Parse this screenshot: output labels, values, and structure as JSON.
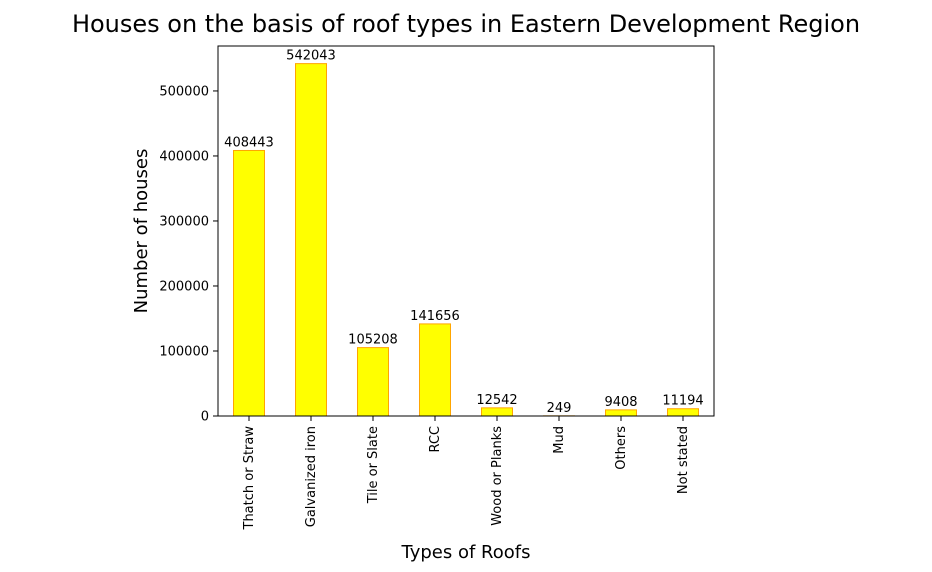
{
  "chart_data": {
    "type": "bar",
    "title": "Houses on the basis of roof types in Eastern Development Region",
    "xlabel": "Types of Roofs",
    "ylabel": "Number of houses",
    "categories": [
      "Thatch or Straw",
      "Galvanized iron",
      "Tile or Slate",
      "RCC",
      "Wood or Planks",
      "Mud",
      "Others",
      "Not stated"
    ],
    "values": [
      408443,
      542043,
      105208,
      141656,
      12542,
      249,
      9408,
      11194
    ],
    "data_labels": [
      "408443",
      "542043",
      "105208",
      "141656",
      "12542",
      "249",
      "9408",
      "11194"
    ],
    "yticks": [
      0,
      100000,
      200000,
      300000,
      400000,
      500000
    ],
    "ytick_labels": [
      "0",
      "100000",
      "200000",
      "300000",
      "400000",
      "500000"
    ],
    "ylim": [
      0,
      569145
    ],
    "grid": false,
    "legend": "none",
    "colors": {
      "bar_fill": "#ffff00",
      "bar_edge": "#ffa500",
      "axis": "#000000"
    }
  }
}
